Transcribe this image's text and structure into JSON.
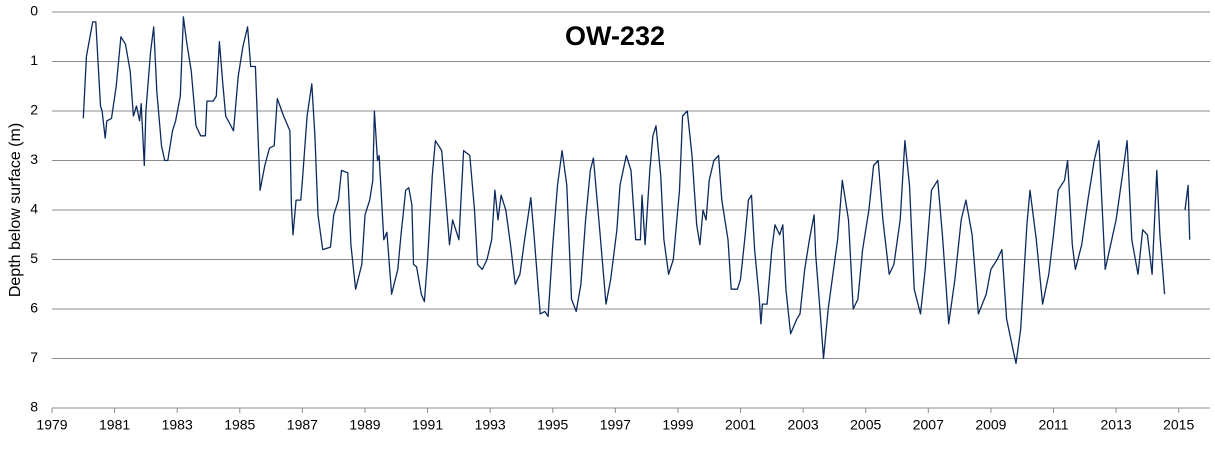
{
  "chart_data": {
    "type": "line",
    "title": "OW-232",
    "y_label": "Depth below surface (m)",
    "xlim": [
      1979,
      2016
    ],
    "xticks": [
      1979,
      1981,
      1983,
      1985,
      1987,
      1989,
      1991,
      1993,
      1995,
      1997,
      1999,
      2001,
      2003,
      2005,
      2007,
      2009,
      2011,
      2013,
      2015
    ],
    "ylim": [
      0,
      8
    ],
    "yticks": [
      0,
      1,
      2,
      3,
      4,
      5,
      6,
      7,
      8
    ],
    "y_reversed": true,
    "grid": true,
    "color": "#0d2a5e",
    "x": [
      1980.0,
      1980.1,
      1980.3,
      1980.4,
      1980.55,
      1980.6,
      1980.7,
      1980.75,
      1980.9,
      1981.05,
      1981.2,
      1981.35,
      1981.5,
      1981.6,
      1981.7,
      1981.8,
      1981.85,
      1981.95,
      1982.0,
      1982.15,
      1982.25,
      1982.35,
      1982.5,
      1982.6,
      1982.7,
      1982.85,
      1982.95,
      1983.1,
      1983.2,
      1983.3,
      1983.45,
      1983.6,
      1983.75,
      1983.9,
      1983.95,
      1984.15,
      1984.25,
      1984.35,
      1984.45,
      1984.55,
      1984.8,
      1984.95,
      1985.1,
      1985.25,
      1985.35,
      1985.5,
      1985.65,
      1985.8,
      1985.95,
      1986.1,
      1986.15,
      1986.2,
      1986.4,
      1986.6,
      1986.65,
      1986.7,
      1986.8,
      1986.95,
      1987.0,
      1987.15,
      1987.3,
      1987.4,
      1987.5,
      1987.65,
      1987.9,
      1988.0,
      1988.15,
      1988.25,
      1988.45,
      1988.55,
      1988.7,
      1988.9,
      1989.0,
      1989.15,
      1989.25,
      1989.3,
      1989.4,
      1989.45,
      1989.6,
      1989.7,
      1989.85,
      1990.05,
      1990.15,
      1990.3,
      1990.4,
      1990.5,
      1990.55,
      1990.65,
      1990.8,
      1990.9,
      1991.0,
      1991.15,
      1991.25,
      1991.45,
      1991.6,
      1991.7,
      1991.8,
      1992.0,
      1992.15,
      1992.35,
      1992.5,
      1992.6,
      1992.75,
      1992.9,
      1993.05,
      1993.15,
      1993.25,
      1993.35,
      1993.5,
      1993.65,
      1993.8,
      1993.95,
      1994.1,
      1994.3,
      1994.4,
      1994.6,
      1994.75,
      1994.85,
      1995.0,
      1995.15,
      1995.3,
      1995.45,
      1995.6,
      1995.75,
      1995.9,
      1996.05,
      1996.2,
      1996.3,
      1996.5,
      1996.7,
      1996.85,
      1997.05,
      1997.15,
      1997.35,
      1997.5,
      1997.65,
      1997.8,
      1997.85,
      1997.95,
      1998.1,
      1998.2,
      1998.3,
      1998.45,
      1998.55,
      1998.7,
      1998.85,
      1999.05,
      1999.15,
      1999.3,
      1999.45,
      1999.6,
      1999.7,
      1999.8,
      1999.9,
      2000.0,
      2000.15,
      2000.3,
      2000.4,
      2000.6,
      2000.7,
      2000.9,
      2001.0,
      2001.15,
      2001.25,
      2001.35,
      2001.45,
      2001.6,
      2001.65,
      2001.7,
      2001.85,
      2002.0,
      2002.1,
      2002.25,
      2002.35,
      2002.45,
      2002.6,
      2002.8,
      2002.9,
      2003.05,
      2003.2,
      2003.35,
      2003.4,
      2003.55,
      2003.65,
      2003.8,
      2003.95,
      2004.1,
      2004.25,
      2004.45,
      2004.6,
      2004.75,
      2004.9,
      2005.1,
      2005.25,
      2005.4,
      2005.55,
      2005.75,
      2005.9,
      2006.1,
      2006.25,
      2006.4,
      2006.55,
      2006.75,
      2006.9,
      2007.1,
      2007.3,
      2007.45,
      2007.65,
      2007.85,
      2008.05,
      2008.2,
      2008.4,
      2008.6,
      2008.85,
      2009.0,
      2009.2,
      2009.35,
      2009.5,
      2009.7,
      2009.8,
      2009.95,
      2010.15,
      2010.25,
      2010.45,
      2010.65,
      2010.85,
      2011.0,
      2011.15,
      2011.35,
      2011.45,
      2011.6,
      2011.7,
      2011.9,
      2012.1,
      2012.3,
      2012.45,
      2012.65,
      2013.0,
      2013.2,
      2013.35,
      2013.5,
      2013.7,
      2013.85,
      2014.0,
      2014.15,
      2014.3,
      2014.4,
      2014.55,
      2014.9,
      2015.2,
      2015.3,
      2015.35
    ],
    "values": [
      2.15,
      0.9,
      0.2,
      0.2,
      1.9,
      2.0,
      2.55,
      2.2,
      2.15,
      1.5,
      0.5,
      0.65,
      1.2,
      2.1,
      1.9,
      2.2,
      1.85,
      3.1,
      2.0,
      0.8,
      0.3,
      1.6,
      2.7,
      3.0,
      3.0,
      2.4,
      2.2,
      1.7,
      0.1,
      0.6,
      1.2,
      2.3,
      2.5,
      2.5,
      1.8,
      1.8,
      1.7,
      0.6,
      1.4,
      2.1,
      2.4,
      1.3,
      0.7,
      0.3,
      1.1,
      1.1,
      3.6,
      3.1,
      2.75,
      2.7,
      2.2,
      1.75,
      2.1,
      2.4,
      3.9,
      4.5,
      3.8,
      3.8,
      3.4,
      2.1,
      1.45,
      2.5,
      4.1,
      4.8,
      4.75,
      4.1,
      3.8,
      3.2,
      3.25,
      4.7,
      5.6,
      5.1,
      4.1,
      3.8,
      3.4,
      2.0,
      3.0,
      2.9,
      4.6,
      4.45,
      5.7,
      5.2,
      4.5,
      3.6,
      3.55,
      3.9,
      5.1,
      5.15,
      5.7,
      5.85,
      5.0,
      3.3,
      2.6,
      2.8,
      3.9,
      4.7,
      4.2,
      4.6,
      2.8,
      2.9,
      4.0,
      5.1,
      5.2,
      5.0,
      4.6,
      3.6,
      4.2,
      3.7,
      4.0,
      4.7,
      5.5,
      5.3,
      4.6,
      3.75,
      4.5,
      6.1,
      6.05,
      6.15,
      4.7,
      3.5,
      2.8,
      3.5,
      5.8,
      6.05,
      5.5,
      4.2,
      3.2,
      2.95,
      4.4,
      5.9,
      5.4,
      4.4,
      3.5,
      2.9,
      3.2,
      4.6,
      4.6,
      3.7,
      4.7,
      3.2,
      2.5,
      2.3,
      3.3,
      4.6,
      5.3,
      5.0,
      3.6,
      2.1,
      2.0,
      2.9,
      4.3,
      4.7,
      4.0,
      4.2,
      3.4,
      3.0,
      2.9,
      3.8,
      4.6,
      5.6,
      5.6,
      5.4,
      4.5,
      3.8,
      3.7,
      4.8,
      5.8,
      6.3,
      5.9,
      5.9,
      4.8,
      4.3,
      4.5,
      4.3,
      5.6,
      6.5,
      6.2,
      6.1,
      5.2,
      4.6,
      4.1,
      4.9,
      6.1,
      7.0,
      6.0,
      5.3,
      4.6,
      3.4,
      4.2,
      6.0,
      5.8,
      4.8,
      4.0,
      3.1,
      3.0,
      4.2,
      5.3,
      5.1,
      4.2,
      2.6,
      3.5,
      5.6,
      6.1,
      5.2,
      3.6,
      3.4,
      4.5,
      6.3,
      5.4,
      4.2,
      3.8,
      4.5,
      6.1,
      5.7,
      5.2,
      5.0,
      4.8,
      6.2,
      6.8,
      7.1,
      6.4,
      4.3,
      3.6,
      4.6,
      5.9,
      5.3,
      4.5,
      3.6,
      3.4,
      3.0,
      4.7,
      5.2,
      4.7,
      3.8,
      3.0,
      2.6,
      5.2,
      4.2,
      3.3,
      2.6,
      4.6,
      5.3,
      4.4,
      4.5,
      5.3,
      3.2,
      4.5,
      5.7,
      null,
      4.0,
      3.5,
      4.6
    ]
  }
}
